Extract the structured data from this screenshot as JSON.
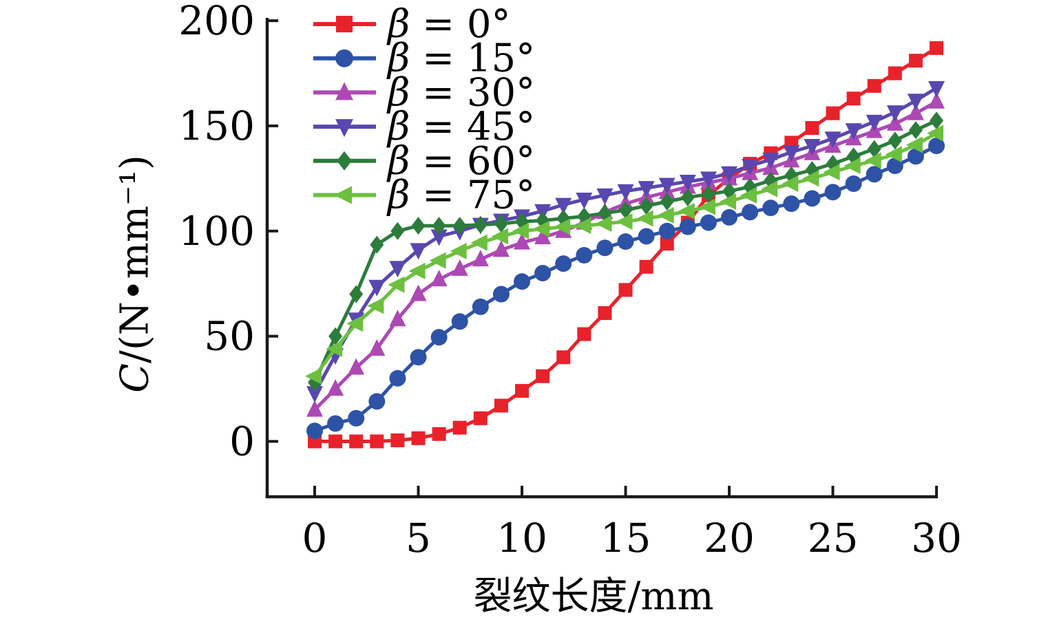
{
  "chart_data": {
    "type": "line",
    "xlabel": "裂纹长度/mm",
    "ylabel": "C/(N•mm⁻¹)",
    "xlim": [
      0,
      30
    ],
    "ylim": [
      0,
      200
    ],
    "x_ticks": [
      0,
      5,
      10,
      15,
      20,
      25,
      30
    ],
    "y_ticks": [
      0,
      50,
      100,
      150,
      200
    ],
    "grid": false,
    "legend_position": "upper-left",
    "x": [
      0,
      1,
      2,
      3,
      4,
      5,
      6,
      7,
      8,
      9,
      10,
      11,
      12,
      13,
      14,
      15,
      16,
      17,
      18,
      19,
      20,
      21,
      22,
      23,
      24,
      25,
      26,
      27,
      28,
      29,
      30
    ],
    "series": [
      {
        "label": "β = 0°",
        "color": "#e8222b",
        "marker": "square",
        "values": [
          0,
          0,
          0,
          0,
          0.5,
          1.5,
          3.5,
          6.5,
          11,
          17,
          24,
          31,
          40,
          51,
          61,
          72,
          83,
          94,
          104,
          117,
          125,
          132,
          137,
          142,
          149,
          156,
          163,
          169,
          175,
          181,
          187
        ]
      },
      {
        "label": "β = 15°",
        "color": "#2e53a6",
        "marker": "circle",
        "values": [
          5,
          8.5,
          11,
          19,
          30,
          40,
          49.5,
          57,
          64,
          70,
          76,
          80,
          84.5,
          88.5,
          92,
          95,
          97.5,
          100,
          102,
          104,
          106.5,
          109,
          111,
          113,
          115.5,
          118.5,
          122.5,
          127,
          131,
          135.5,
          140.5
        ]
      },
      {
        "label": "β = 30°",
        "color": "#ac49b4",
        "marker": "triangle-up",
        "values": [
          15,
          25,
          35,
          44,
          58,
          70,
          77,
          82,
          86.5,
          91,
          94.5,
          97,
          100,
          104,
          109,
          113,
          116,
          118.5,
          121,
          123,
          125,
          127.5,
          130,
          133.5,
          137,
          140.5,
          144,
          147.5,
          151,
          156,
          161.5
        ]
      },
      {
        "label": "β = 45°",
        "color": "#5947af",
        "marker": "triangle-down",
        "values": [
          23,
          41,
          58,
          73.5,
          82.5,
          91,
          97.5,
          100,
          103,
          105,
          107,
          109.5,
          112.5,
          115,
          117,
          119,
          120.5,
          122,
          123.5,
          125,
          127.5,
          131,
          134,
          137.5,
          140.5,
          144,
          148,
          152,
          156.5,
          162,
          168
        ]
      },
      {
        "label": "β = 60°",
        "color": "#2c7c3c",
        "marker": "diamond",
        "values": [
          28,
          50,
          70,
          93.5,
          100,
          102.5,
          102.5,
          102.5,
          103,
          103.5,
          104.5,
          105,
          106,
          107,
          108.5,
          110,
          112,
          114,
          116,
          117.5,
          119,
          121,
          124,
          126.5,
          129,
          132,
          135.5,
          139,
          143,
          148,
          152.5
        ]
      },
      {
        "label": "β = 75°",
        "color": "#6cbf3f",
        "marker": "triangle-left",
        "values": [
          31,
          44,
          56,
          64.5,
          74.5,
          81,
          86,
          90.5,
          94.5,
          97.5,
          100,
          101,
          102,
          102.5,
          103.5,
          104.5,
          106,
          107.5,
          109.5,
          111.5,
          114,
          117,
          120,
          122.5,
          125,
          128,
          131,
          133.5,
          136.5,
          141,
          146.5
        ]
      }
    ]
  }
}
